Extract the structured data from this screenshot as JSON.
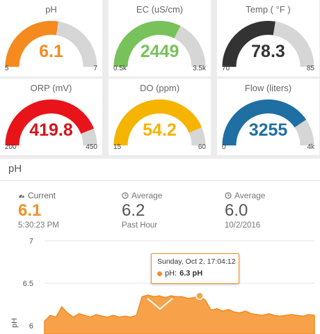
{
  "gauges": [
    {
      "title": "pH",
      "value": "6.1",
      "min": "5",
      "max": "7",
      "fraction": 0.55,
      "color": "#f58a1f",
      "text_color": "#f58a1f"
    },
    {
      "title": "EC (uS/cm)",
      "value": "2449",
      "min": "0.5k",
      "max": "3.5k",
      "fraction": 0.65,
      "color": "#77c25a",
      "text_color": "#77c25a"
    },
    {
      "title": "Temp ( °F )",
      "value": "78.3",
      "min": "70",
      "max": "85",
      "fraction": 0.55,
      "color": "#333333",
      "text_color": "#333333"
    },
    {
      "title": "ORP (mV)",
      "value": "419.8",
      "min": "200",
      "max": "450",
      "fraction": 0.88,
      "color": "#e8141a",
      "text_color": "#d4141a"
    },
    {
      "title": "DO (ppm)",
      "value": "54.2",
      "min": "15",
      "max": "60",
      "fraction": 0.87,
      "color": "#f5b400",
      "text_color": "#f5b400"
    },
    {
      "title": "Flow (liters)",
      "value": "3255",
      "min": "0",
      "max": "4k",
      "fraction": 0.81,
      "color": "#1f6fa3",
      "text_color": "#1f6fa3"
    }
  ],
  "detail": {
    "title": "pH",
    "current": {
      "label": "Current",
      "value": "6.1",
      "sub": "5:30:23 PM",
      "icon": "gauge-icon"
    },
    "avg_hour": {
      "label": "Average",
      "value": "6.2",
      "sub": "Past Hour",
      "icon": "clock-icon"
    },
    "avg_day": {
      "label": "Average",
      "value": "6.0",
      "sub": "10/2/2016",
      "icon": "clock-icon"
    }
  },
  "tooltip": {
    "date": "Sunday, Oct 2, 17:04:12",
    "series": "pH:",
    "value": "6.3 pH"
  },
  "chart_data": {
    "type": "area",
    "ylabel": "pH",
    "yticks": [
      "7",
      "6.5",
      "6"
    ],
    "ylim": [
      5.9,
      7.05
    ],
    "color": "#f7a24a",
    "series": [
      {
        "values": [
          6.05,
          6.12,
          6.1,
          6.22,
          6.15,
          6.1,
          6.14,
          6.12,
          6.1,
          6.13,
          6.11,
          6.1,
          6.12,
          6.1,
          6.11,
          6.1,
          6.12,
          6.34,
          6.36,
          6.34,
          6.35,
          6.33,
          6.35,
          6.34,
          6.34,
          6.32,
          6.33,
          6.35,
          6.3,
          6.18,
          6.2,
          6.17,
          6.19,
          6.16,
          6.15,
          6.17,
          6.14,
          6.13,
          6.12,
          6.14,
          6.12,
          6.11,
          6.12,
          6.13,
          6.12,
          6.11,
          6.13,
          6.12
        ]
      }
    ]
  }
}
